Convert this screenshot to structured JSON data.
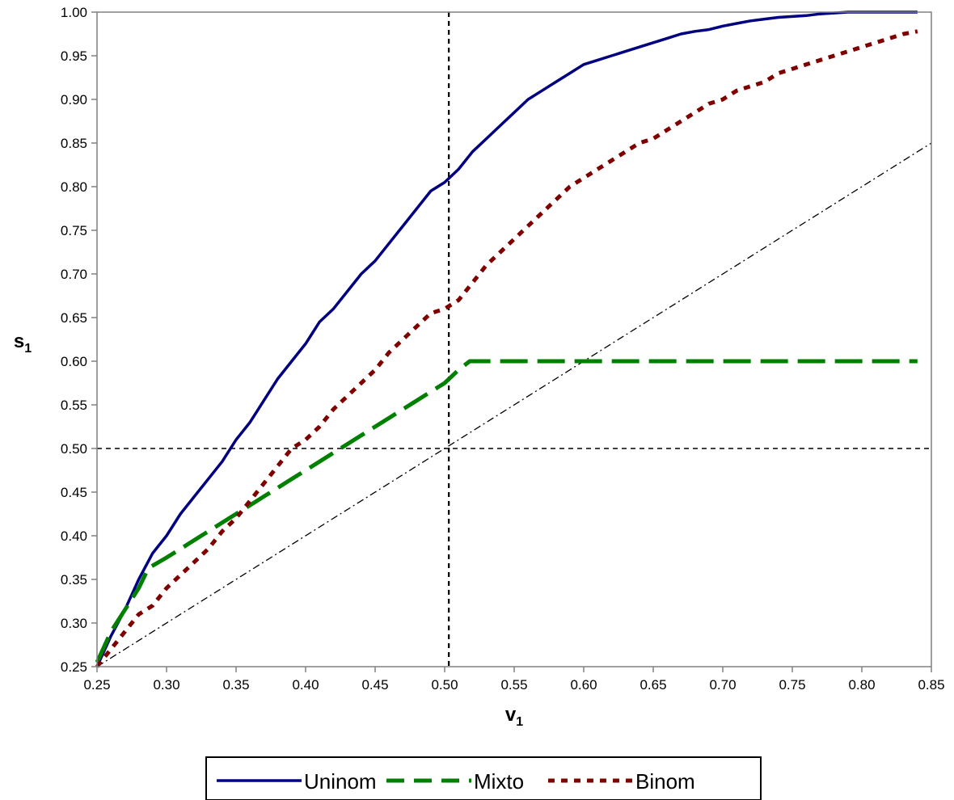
{
  "chart_data": {
    "type": "line",
    "xlabel": {
      "main": "v",
      "sub": "1"
    },
    "ylabel": {
      "main": "s",
      "sub": "1"
    },
    "xlim": [
      0.25,
      0.85
    ],
    "ylim": [
      0.25,
      1.0
    ],
    "x_ticks": [
      "0.25",
      "0.30",
      "0.35",
      "0.40",
      "0.45",
      "0.50",
      "0.55",
      "0.60",
      "0.65",
      "0.70",
      "0.75",
      "0.80",
      "0.85"
    ],
    "y_ticks": [
      "0.25",
      "0.30",
      "0.35",
      "0.40",
      "0.45",
      "0.50",
      "0.55",
      "0.60",
      "0.65",
      "0.70",
      "0.75",
      "0.80",
      "0.85",
      "0.90",
      "0.95",
      "1.00"
    ],
    "grid": false,
    "legend_position": "bottom",
    "reference_lines": [
      {
        "orientation": "vertical",
        "value": 0.503,
        "style": "dashed",
        "color": "#000000"
      },
      {
        "orientation": "horizontal",
        "value": 0.5,
        "style": "dashed",
        "color": "#000000"
      }
    ],
    "diagonal": {
      "style": "dash-dot",
      "color": "#000000",
      "x": [
        0.25,
        0.85
      ],
      "y": [
        0.25,
        0.85
      ]
    },
    "series": [
      {
        "name": "Uninom",
        "color": "#000080",
        "style": "solid",
        "x": [
          0.25,
          0.26,
          0.27,
          0.28,
          0.29,
          0.3,
          0.31,
          0.32,
          0.33,
          0.34,
          0.35,
          0.36,
          0.37,
          0.38,
          0.39,
          0.4,
          0.41,
          0.42,
          0.43,
          0.44,
          0.45,
          0.46,
          0.47,
          0.48,
          0.49,
          0.5,
          0.51,
          0.52,
          0.53,
          0.54,
          0.55,
          0.56,
          0.57,
          0.58,
          0.59,
          0.6,
          0.61,
          0.62,
          0.63,
          0.64,
          0.65,
          0.66,
          0.67,
          0.68,
          0.69,
          0.7,
          0.71,
          0.72,
          0.73,
          0.74,
          0.75,
          0.76,
          0.77,
          0.78,
          0.79,
          0.8,
          0.81,
          0.82,
          0.83,
          0.84
        ],
        "y": [
          0.25,
          0.285,
          0.315,
          0.35,
          0.38,
          0.4,
          0.425,
          0.445,
          0.465,
          0.485,
          0.51,
          0.53,
          0.555,
          0.58,
          0.6,
          0.62,
          0.645,
          0.66,
          0.68,
          0.7,
          0.715,
          0.735,
          0.755,
          0.775,
          0.795,
          0.805,
          0.82,
          0.84,
          0.855,
          0.87,
          0.885,
          0.9,
          0.91,
          0.92,
          0.93,
          0.94,
          0.945,
          0.95,
          0.955,
          0.96,
          0.965,
          0.97,
          0.975,
          0.978,
          0.98,
          0.984,
          0.987,
          0.99,
          0.992,
          0.994,
          0.995,
          0.996,
          0.998,
          0.999,
          1.0,
          1.0,
          1.0,
          1.0,
          1.0,
          1.0
        ]
      },
      {
        "name": "Mixto",
        "color": "#008000",
        "style": "long-dash",
        "x": [
          0.25,
          0.26,
          0.27,
          0.28,
          0.287,
          0.3,
          0.31,
          0.32,
          0.33,
          0.34,
          0.35,
          0.36,
          0.37,
          0.38,
          0.39,
          0.4,
          0.41,
          0.42,
          0.43,
          0.44,
          0.45,
          0.46,
          0.47,
          0.48,
          0.49,
          0.5,
          0.51,
          0.518,
          0.55,
          0.6,
          0.65,
          0.7,
          0.75,
          0.8,
          0.84
        ],
        "y": [
          0.255,
          0.29,
          0.315,
          0.34,
          0.363,
          0.375,
          0.385,
          0.395,
          0.405,
          0.415,
          0.425,
          0.435,
          0.445,
          0.455,
          0.465,
          0.475,
          0.485,
          0.495,
          0.505,
          0.515,
          0.525,
          0.535,
          0.545,
          0.555,
          0.565,
          0.575,
          0.59,
          0.6,
          0.6,
          0.6,
          0.6,
          0.6,
          0.6,
          0.6,
          0.6
        ]
      },
      {
        "name": "Binom",
        "color": "#800000",
        "style": "dotted",
        "x": [
          0.25,
          0.26,
          0.27,
          0.28,
          0.29,
          0.3,
          0.31,
          0.32,
          0.33,
          0.34,
          0.35,
          0.36,
          0.37,
          0.38,
          0.39,
          0.4,
          0.41,
          0.42,
          0.43,
          0.44,
          0.45,
          0.46,
          0.47,
          0.48,
          0.49,
          0.5,
          0.51,
          0.52,
          0.53,
          0.54,
          0.55,
          0.56,
          0.57,
          0.58,
          0.59,
          0.6,
          0.61,
          0.62,
          0.63,
          0.64,
          0.65,
          0.66,
          0.67,
          0.68,
          0.69,
          0.7,
          0.71,
          0.72,
          0.73,
          0.74,
          0.75,
          0.76,
          0.77,
          0.78,
          0.79,
          0.8,
          0.81,
          0.82,
          0.83,
          0.84
        ],
        "y": [
          0.25,
          0.27,
          0.29,
          0.31,
          0.32,
          0.34,
          0.355,
          0.37,
          0.385,
          0.405,
          0.42,
          0.44,
          0.46,
          0.48,
          0.5,
          0.51,
          0.525,
          0.545,
          0.56,
          0.575,
          0.59,
          0.61,
          0.625,
          0.64,
          0.655,
          0.66,
          0.67,
          0.69,
          0.71,
          0.725,
          0.74,
          0.755,
          0.77,
          0.785,
          0.8,
          0.81,
          0.82,
          0.83,
          0.84,
          0.85,
          0.855,
          0.865,
          0.875,
          0.885,
          0.895,
          0.9,
          0.91,
          0.915,
          0.92,
          0.93,
          0.935,
          0.94,
          0.945,
          0.95,
          0.955,
          0.96,
          0.965,
          0.97,
          0.975,
          0.978
        ]
      }
    ]
  }
}
